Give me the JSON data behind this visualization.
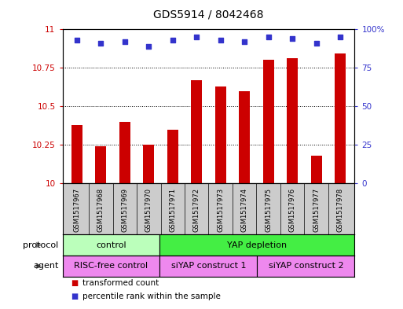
{
  "title": "GDS5914 / 8042468",
  "samples": [
    "GSM1517967",
    "GSM1517968",
    "GSM1517969",
    "GSM1517970",
    "GSM1517971",
    "GSM1517972",
    "GSM1517973",
    "GSM1517974",
    "GSM1517975",
    "GSM1517976",
    "GSM1517977",
    "GSM1517978"
  ],
  "bar_values": [
    10.38,
    10.24,
    10.4,
    10.25,
    10.35,
    10.67,
    10.63,
    10.6,
    10.8,
    10.81,
    10.18,
    10.84
  ],
  "percentile_values": [
    93,
    91,
    92,
    89,
    93,
    95,
    93,
    92,
    95,
    94,
    91,
    95
  ],
  "bar_color": "#cc0000",
  "dot_color": "#3333cc",
  "ylim_left": [
    10,
    11
  ],
  "ylim_right": [
    0,
    100
  ],
  "yticks_left": [
    10,
    10.25,
    10.5,
    10.75,
    11
  ],
  "ytick_labels_left": [
    "10",
    "10.25",
    "10.5",
    "10.75",
    "11"
  ],
  "yticks_right": [
    0,
    25,
    50,
    75,
    100
  ],
  "ytick_labels_right": [
    "0",
    "25",
    "50",
    "75",
    "100%"
  ],
  "protocol_groups": [
    {
      "label": "control",
      "start": 0,
      "end": 4,
      "color": "#bbffbb"
    },
    {
      "label": "YAP depletion",
      "start": 4,
      "end": 12,
      "color": "#44ee44"
    }
  ],
  "agent_groups": [
    {
      "label": "RISC-free control",
      "start": 0,
      "end": 4,
      "color": "#ee88ee"
    },
    {
      "label": "siYAP construct 1",
      "start": 4,
      "end": 8,
      "color": "#ee88ee"
    },
    {
      "label": "siYAP construct 2",
      "start": 8,
      "end": 12,
      "color": "#ee88ee"
    }
  ],
  "legend_items": [
    {
      "label": "transformed count",
      "color": "#cc0000"
    },
    {
      "label": "percentile rank within the sample",
      "color": "#3333cc"
    }
  ],
  "xlabel_protocol": "protocol",
  "xlabel_agent": "agent",
  "background_color": "#ffffff",
  "plot_bg_color": "#ffffff",
  "label_bg_color": "#cccccc",
  "title_fontsize": 10,
  "bar_width": 0.45
}
